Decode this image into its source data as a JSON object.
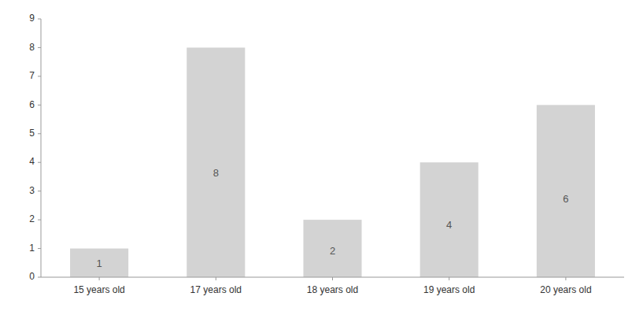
{
  "chart_data": {
    "type": "bar",
    "categories": [
      "15 years old",
      "17 years old",
      "18 years old",
      "19 years old",
      "20 years old"
    ],
    "values": [
      1,
      8,
      2,
      4,
      6
    ],
    "color": "#d3d3d3",
    "ylim": [
      0,
      9
    ],
    "yticks": [
      0,
      1,
      2,
      3,
      4,
      5,
      6,
      7,
      8,
      9
    ],
    "grid": false,
    "data_labels": true
  }
}
